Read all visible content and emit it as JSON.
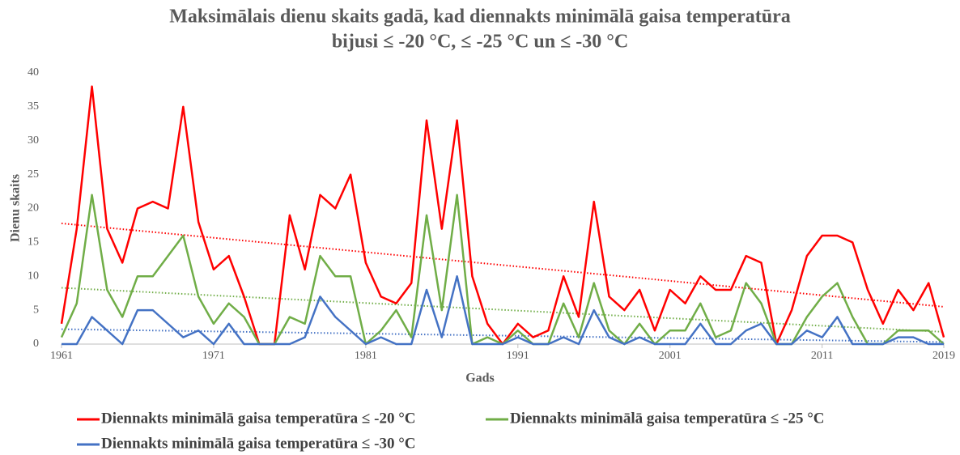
{
  "chart_data": {
    "type": "line",
    "title": [
      "Maksimālais dienu skaits gadā, kad diennakts minimālā gaisa temperatūra",
      "bijusi  ≤ -20 °C, ≤ -25 °C un ≤ -30 °C"
    ],
    "x_label": "Gads",
    "y_label": "Dienu skaits",
    "x": [
      1961,
      1962,
      1963,
      1964,
      1965,
      1966,
      1967,
      1968,
      1969,
      1970,
      1971,
      1972,
      1973,
      1974,
      1975,
      1976,
      1977,
      1978,
      1979,
      1980,
      1981,
      1982,
      1983,
      1984,
      1985,
      1986,
      1987,
      1988,
      1989,
      1990,
      1991,
      1992,
      1993,
      1994,
      1995,
      1996,
      1997,
      1998,
      1999,
      2000,
      2001,
      2002,
      2003,
      2004,
      2005,
      2006,
      2007,
      2008,
      2009,
      2010,
      2011,
      2012,
      2013,
      2014,
      2015,
      2016,
      2017,
      2018,
      2019
    ],
    "xlim": [
      1961,
      2019
    ],
    "xticks": [
      1961,
      1971,
      1981,
      1991,
      2001,
      2011,
      2019
    ],
    "ylim": [
      0,
      40
    ],
    "yticks": [
      0,
      5,
      10,
      15,
      20,
      25,
      30,
      35,
      40
    ],
    "grid": false,
    "series": [
      {
        "name": "Diennakts minimālā gaisa temperatūra ≤ -20 °C",
        "color": "#ff0000",
        "values": [
          3,
          17,
          38,
          17,
          12,
          20,
          21,
          20,
          35,
          18,
          11,
          13,
          7,
          0,
          0,
          19,
          11,
          22,
          20,
          25,
          12,
          7,
          6,
          9,
          33,
          17,
          33,
          10,
          3,
          0,
          3,
          1,
          2,
          10,
          4,
          21,
          7,
          5,
          8,
          2,
          8,
          6,
          10,
          8,
          8,
          13,
          12,
          0,
          5,
          13,
          16,
          16,
          15,
          8,
          3,
          8,
          5,
          9,
          1
        ],
        "trend": [
          17.8,
          5.5
        ]
      },
      {
        "name": "Diennakts minimālā gaisa temperatūra ≤ -25 °C",
        "color": "#70ad47",
        "values": [
          1,
          6,
          22,
          8,
          4,
          10,
          10,
          13,
          16,
          7,
          3,
          6,
          4,
          0,
          0,
          4,
          3,
          13,
          10,
          10,
          0,
          2,
          5,
          1,
          19,
          5,
          22,
          0,
          1,
          0,
          2,
          0,
          0,
          6,
          1,
          9,
          2,
          0,
          3,
          0,
          2,
          2,
          6,
          1,
          2,
          9,
          6,
          0,
          0,
          4,
          7,
          9,
          4,
          0,
          0,
          2,
          2,
          2,
          0
        ],
        "trend": [
          8.3,
          1.8
        ]
      },
      {
        "name": "Diennakts minimālā gaisa temperatūra ≤ -30 °C",
        "color": "#4472c4",
        "values": [
          0,
          0,
          4,
          2,
          0,
          5,
          5,
          3,
          1,
          2,
          0,
          3,
          0,
          0,
          0,
          0,
          1,
          7,
          4,
          2,
          0,
          1,
          0,
          0,
          8,
          1,
          10,
          0,
          0,
          0,
          1,
          0,
          0,
          1,
          0,
          5,
          1,
          0,
          1,
          0,
          0,
          0,
          3,
          0,
          0,
          2,
          3,
          0,
          0,
          2,
          1,
          4,
          0,
          0,
          0,
          1,
          1,
          0,
          0
        ],
        "trend": [
          2.2,
          0.3
        ]
      }
    ]
  }
}
